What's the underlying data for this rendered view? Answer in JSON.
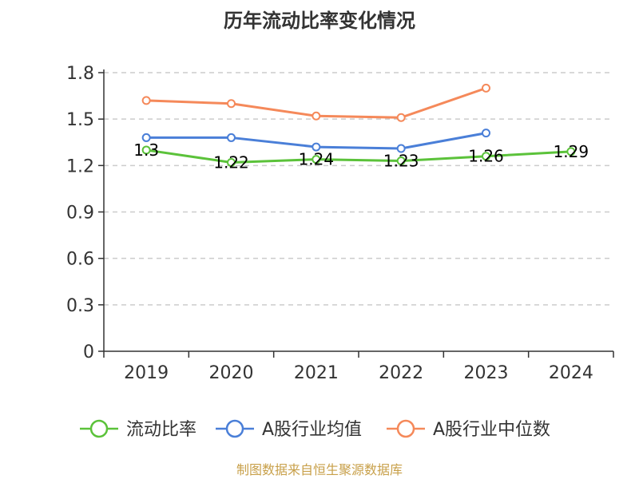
{
  "chart_data": {
    "type": "line",
    "title": "历年流动比率变化情况",
    "categories": [
      "2019",
      "2020",
      "2021",
      "2022",
      "2023",
      "2024"
    ],
    "ylim": [
      0,
      1.8
    ],
    "yticks": [
      "0",
      "0.3",
      "0.6",
      "0.9",
      "1.2",
      "1.5",
      "1.8"
    ],
    "grid": true,
    "legend_position": "bottom",
    "series": [
      {
        "name": "流动比率",
        "color": "#5bc23a",
        "values": [
          1.3,
          1.22,
          1.24,
          1.23,
          1.26,
          1.29
        ],
        "labels": [
          "1.3",
          "1.22",
          "1.24",
          "1.23",
          "1.26",
          "1.29"
        ]
      },
      {
        "name": "A股行业均值",
        "color": "#4a7fd8",
        "values": [
          1.38,
          1.38,
          1.32,
          1.31,
          1.41,
          null
        ]
      },
      {
        "name": "A股行业中位数",
        "color": "#f5895a",
        "values": [
          1.62,
          1.6,
          1.52,
          1.51,
          1.7,
          null
        ]
      }
    ]
  },
  "source": "制图数据来自恒生聚源数据库"
}
